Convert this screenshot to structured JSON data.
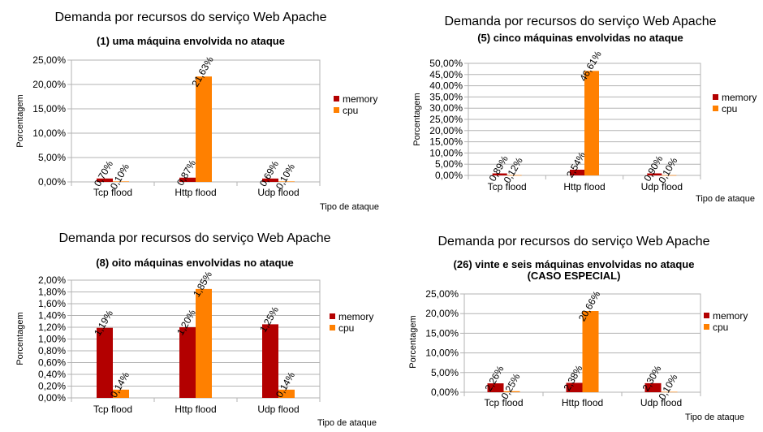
{
  "chart_data": [
    {
      "type": "bar",
      "title": "Demanda por recursos do serviço Web Apache",
      "subtitle": "(1) uma máquina envolvida no ataque",
      "xlabel": "Tipo de ataque",
      "ylabel": "Porcentagem",
      "categories": [
        "Tcp flood",
        "Http flood",
        "Udp flood"
      ],
      "series": [
        {
          "name": "memory",
          "values": [
            0.7,
            0.87,
            0.69
          ],
          "labels": [
            "0,70%",
            "0,87%",
            "0,69%"
          ]
        },
        {
          "name": "cpu",
          "values": [
            0.1,
            21.63,
            0.1
          ],
          "labels": [
            "0,10%",
            "21,63%",
            "0,10%"
          ]
        }
      ],
      "ylim": [
        0,
        25
      ],
      "yticks": [
        0,
        5,
        10,
        15,
        20,
        25
      ],
      "ytick_labels": [
        "0,00%",
        "5,00%",
        "10,00%",
        "15,00%",
        "20,00%",
        "25,00%"
      ],
      "grid": true,
      "legend": "right"
    },
    {
      "type": "bar",
      "title": "Demanda por recursos do serviço Web Apache",
      "subtitle": "(5) cinco máquinas envolvidas no ataque",
      "xlabel": "Tipo de ataque",
      "ylabel": "Porcentagem",
      "categories": [
        "Tcp flood",
        "Http flood",
        "Udp flood"
      ],
      "series": [
        {
          "name": "memory",
          "values": [
            0.89,
            2.54,
            0.9
          ],
          "labels": [
            "0,89%",
            "2,54%",
            "0,90%"
          ]
        },
        {
          "name": "cpu",
          "values": [
            0.12,
            46.61,
            0.1
          ],
          "labels": [
            "0,12%",
            "46,61%",
            "0,10%"
          ]
        }
      ],
      "ylim": [
        0,
        50
      ],
      "yticks": [
        0,
        5,
        10,
        15,
        20,
        25,
        30,
        35,
        40,
        45,
        50
      ],
      "ytick_labels": [
        "0,00%",
        "5,00%",
        "10,00%",
        "15,00%",
        "20,00%",
        "25,00%",
        "30,00%",
        "35,00%",
        "40,00%",
        "45,00%",
        "50,00%"
      ],
      "grid": true,
      "legend": "right"
    },
    {
      "type": "bar",
      "title": "Demanda por recursos do serviço Web Apache",
      "subtitle": "(8) oito máquinas envolvidas no ataque",
      "xlabel": "Tipo de ataque",
      "ylabel": "Porcentagem",
      "categories": [
        "Tcp flood",
        "Http flood",
        "Udp flood"
      ],
      "series": [
        {
          "name": "memory",
          "values": [
            1.19,
            1.2,
            1.25
          ],
          "labels": [
            "1,19%",
            "1,20%",
            "1,25%"
          ]
        },
        {
          "name": "cpu",
          "values": [
            0.14,
            1.85,
            0.14
          ],
          "labels": [
            "0,14%",
            "1,85%",
            "0,14%"
          ]
        }
      ],
      "ylim": [
        0,
        2
      ],
      "yticks": [
        0,
        0.2,
        0.4,
        0.6,
        0.8,
        1.0,
        1.2,
        1.4,
        1.6,
        1.8,
        2.0
      ],
      "ytick_labels": [
        "0,00%",
        "0,20%",
        "0,40%",
        "0,60%",
        "0,80%",
        "1,00%",
        "1,20%",
        "1,40%",
        "1,60%",
        "1,80%",
        "2,00%"
      ],
      "grid": true,
      "legend": "right"
    },
    {
      "type": "bar",
      "title": "Demanda por recursos do serviço Web Apache",
      "subtitle": "(26) vinte e seis máquinas envolvidas no ataque",
      "subtitle2": "(CASO ESPECIAL)",
      "xlabel": "Tipo de ataque",
      "ylabel": "Porcentagem",
      "categories": [
        "Tcp flood",
        "Http flood",
        "Udp flood"
      ],
      "series": [
        {
          "name": "memory",
          "values": [
            2.26,
            2.38,
            2.3
          ],
          "labels": [
            "2,26%",
            "2,38%",
            "2,30%"
          ]
        },
        {
          "name": "cpu",
          "values": [
            0.25,
            20.66,
            0.1
          ],
          "labels": [
            "0,25%",
            "20,66%",
            "0,10%"
          ]
        }
      ],
      "ylim": [
        0,
        25
      ],
      "yticks": [
        0,
        5,
        10,
        15,
        20,
        25
      ],
      "ytick_labels": [
        "0,00%",
        "5,00%",
        "10,00%",
        "15,00%",
        "20,00%",
        "25,00%"
      ],
      "grid": true,
      "legend": "right"
    }
  ],
  "colors": {
    "memory": "#b30000",
    "cpu": "#ff8000",
    "grid": "#b3b3b3",
    "axis": "#b3b3b3"
  }
}
